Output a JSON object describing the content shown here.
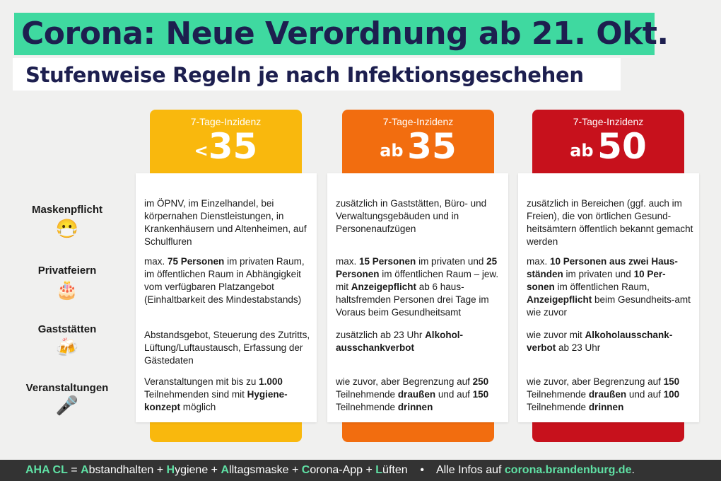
{
  "header": {
    "title": "Corona: Neue Verordnung ab 21. Okt.",
    "subtitle": "Stufenweise Regeln je nach Infektionsgeschehen"
  },
  "colors": {
    "accent_green": "#3fd9a0",
    "title_navy": "#1d1f4f",
    "stage1": "#f9b80d",
    "stage2": "#f26d0f",
    "stage3": "#c7111c"
  },
  "rows": [
    {
      "label": "Maskenpflicht",
      "icon": "face-mask-icon"
    },
    {
      "label": "Privatfeiern",
      "icon": "birthday-cake-icon"
    },
    {
      "label": "Gaststätten",
      "icon": "beer-mugs-icon"
    },
    {
      "label": "Veranstaltungen",
      "icon": "microphone-icon"
    }
  ],
  "stages": [
    {
      "label": "7-Tage-Inzidenz",
      "prefix": "<",
      "value": "35",
      "cells": [
        [
          {
            "t": "im ÖPNV, im Einzelhandel, bei körpernahen Dienstleistungen, in Krankenhäusern und Altenheimen, auf Schulfluren"
          }
        ],
        [
          {
            "t": "max. "
          },
          {
            "t": "75 Personen",
            "b": true
          },
          {
            "t": " im privaten Raum, im öffentlichen Raum in Abhängigkeit vom verfügbaren Platzangebot (Einhaltbarkeit des Mindestabstands)"
          }
        ],
        [
          {
            "t": "Abstandsgebot, Steuerung des Zutritts, Lüftung/Luftaustausch, Erfassung der Gästedaten"
          }
        ],
        [
          {
            "t": "Veranstaltungen mit bis zu "
          },
          {
            "t": "1.000",
            "b": true
          },
          {
            "t": " Teilnehmenden sind mit "
          },
          {
            "t": "Hygiene-konzept",
            "b": true
          },
          {
            "t": " möglich"
          }
        ]
      ]
    },
    {
      "label": "7-Tage-Inzidenz",
      "prefix": "ab",
      "value": "35",
      "cells": [
        [
          {
            "t": "zusätzlich in Gaststätten, Büro- und Verwaltungsgebäuden und in Personenaufzügen"
          }
        ],
        [
          {
            "t": "max. "
          },
          {
            "t": "15 Personen",
            "b": true
          },
          {
            "t": " im privaten und "
          },
          {
            "t": "25 Personen",
            "b": true
          },
          {
            "t": " im öffentlichen Raum – jew. mit "
          },
          {
            "t": "Anzeigepflicht",
            "b": true
          },
          {
            "t": " ab 6 haus-haltsfremden Personen drei Tage im Voraus beim Gesundheitsamt"
          }
        ],
        [
          {
            "t": "zusätzlich ab 23 Uhr "
          },
          {
            "t": "Alkohol-ausschankverbot",
            "b": true
          }
        ],
        [
          {
            "t": "wie zuvor, aber Begrenzung auf "
          },
          {
            "t": "250",
            "b": true
          },
          {
            "t": " Teilnehmende "
          },
          {
            "t": "draußen",
            "b": true
          },
          {
            "t": " und auf "
          },
          {
            "t": "150",
            "b": true
          },
          {
            "t": " Teilnehmende "
          },
          {
            "t": "drinnen",
            "b": true
          }
        ]
      ]
    },
    {
      "label": "7-Tage-Inzidenz",
      "prefix": "ab",
      "value": "50",
      "cells": [
        [
          {
            "t": "zusätzlich in Bereichen (ggf. auch im Freien), die von örtlichen Gesund-heitsämtern öffentlich bekannt gemacht werden"
          }
        ],
        [
          {
            "t": "max. "
          },
          {
            "t": "10 Personen aus zwei Haus-ständen",
            "b": true
          },
          {
            "t": " im privaten und "
          },
          {
            "t": "10 Per-sonen",
            "b": true
          },
          {
            "t": " im öffentlichen Raum, "
          },
          {
            "t": "Anzeigepflicht",
            "b": true
          },
          {
            "t": " beim Gesundheits-amt wie zuvor"
          }
        ],
        [
          {
            "t": "wie zuvor mit "
          },
          {
            "t": "Alkoholausschank-verbot",
            "b": true
          },
          {
            "t": " ab 23 Uhr"
          }
        ],
        [
          {
            "t": "wie zuvor, aber Begrenzung auf "
          },
          {
            "t": "150",
            "b": true
          },
          {
            "t": " Teilnehmende "
          },
          {
            "t": "draußen",
            "b": true
          },
          {
            "t": " und auf "
          },
          {
            "t": "100",
            "b": true
          },
          {
            "t": " Teilnehmende "
          },
          {
            "t": "drinnen",
            "b": true
          }
        ]
      ]
    }
  ],
  "footer": {
    "aha_label": "AHA CL",
    "equals": " = ",
    "words": [
      {
        "initial": "A",
        "rest": "bstandhalten"
      },
      {
        "initial": "H",
        "rest": "ygiene"
      },
      {
        "initial": "A",
        "rest": "lltagsmaske"
      },
      {
        "initial": "C",
        "rest": "orona-App"
      },
      {
        "initial": "L",
        "rest": "üften"
      }
    ],
    "plus": " + ",
    "bullet": "•",
    "info_text": "Alle Infos auf ",
    "info_link": "corona.brandenburg.de",
    "info_end": "."
  }
}
